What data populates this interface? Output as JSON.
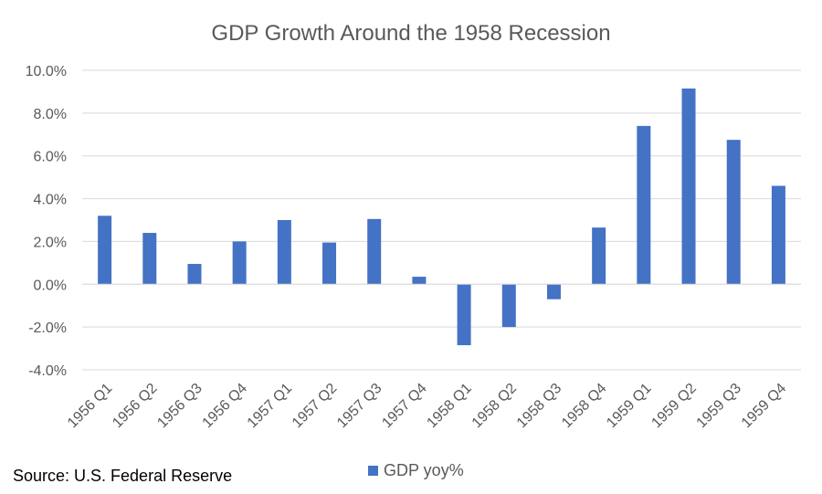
{
  "chart_data": {
    "type": "bar",
    "title": "GDP Growth Around the 1958 Recession",
    "xlabel": "",
    "ylabel": "",
    "categories": [
      "1956 Q1",
      "1956 Q2",
      "1956 Q3",
      "1956 Q4",
      "1957 Q1",
      "1957 Q2",
      "1957 Q3",
      "1957 Q4",
      "1958 Q1",
      "1958 Q2",
      "1958 Q3",
      "1958 Q4",
      "1959 Q1",
      "1959 Q2",
      "1959 Q3",
      "1959 Q4"
    ],
    "series": [
      {
        "name": "GDP yoy%",
        "color": "#4472c4",
        "values": [
          3.2,
          2.4,
          0.95,
          2.0,
          3.0,
          1.95,
          3.05,
          0.35,
          -2.85,
          -2.0,
          -0.7,
          2.65,
          7.4,
          9.15,
          6.75,
          4.6
        ]
      }
    ],
    "ylim": [
      -4,
      10
    ],
    "yticks": [
      10,
      8,
      6,
      4,
      2,
      0,
      -2,
      -4
    ],
    "ytick_labels": [
      "10.0%",
      "8.0%",
      "6.0%",
      "4.0%",
      "2.0%",
      "0.0%",
      "-2.0%",
      "-4.0%"
    ],
    "grid": true,
    "legend_position": "bottom",
    "source_note": "Source: U.S. Federal Reserve"
  }
}
